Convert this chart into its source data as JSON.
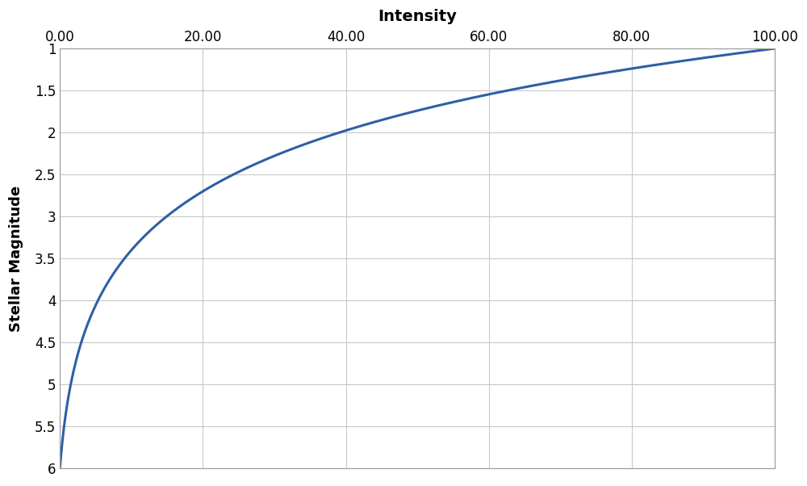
{
  "title": "Intensity",
  "ylabel": "Stellar Magnitude",
  "x_min": 0,
  "x_max": 100,
  "x_ticks": [
    0,
    20,
    40,
    60,
    80,
    100
  ],
  "x_tick_labels": [
    "0.00",
    "20.00",
    "40.00",
    "60.00",
    "80.00",
    "100.00"
  ],
  "y_min": 1,
  "y_max": 6,
  "y_ticks": [
    1,
    1.5,
    2,
    2.5,
    3,
    3.5,
    4,
    4.5,
    5,
    5.5,
    6
  ],
  "y_tick_labels": [
    "1",
    "1.5",
    "2",
    "2.5",
    "3",
    "3.5",
    "4",
    "4.5",
    "5",
    "5.5",
    "6"
  ],
  "line_color": "#2E5FA3",
  "line_width": 2.2,
  "background_color": "#FFFFFF",
  "grid_color": "#C8C8C8",
  "title_fontsize": 14,
  "label_fontsize": 13,
  "tick_fontsize": 12
}
